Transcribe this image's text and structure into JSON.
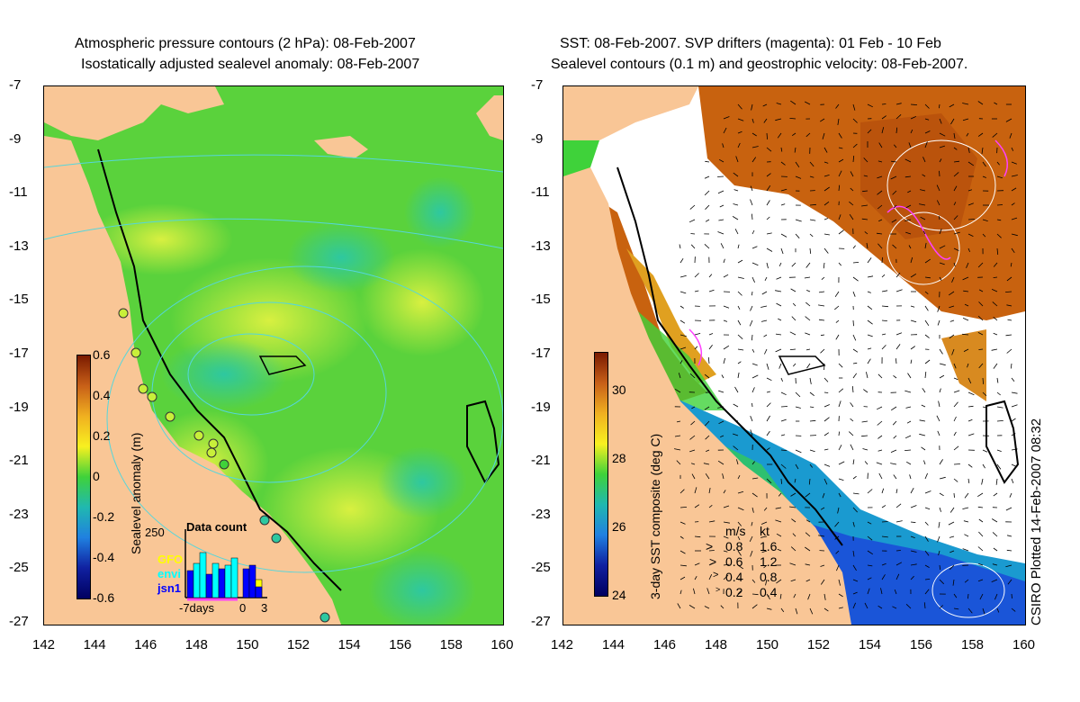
{
  "left_panel": {
    "title_line1": "Atmospheric pressure contours (2 hPa): 08-Feb-2007",
    "title_line2": "Isostatically adjusted sealevel anomaly: 08-Feb-2007",
    "colorbar": {
      "label": "Sealevel anomaly (m)",
      "ticks": [
        "0.6",
        "0.4",
        "0.2",
        "0",
        "-0.2",
        "-0.4",
        "-0.6"
      ]
    },
    "data_count": {
      "title": "Data count",
      "ymax_label": "250",
      "satellites": [
        "GFO",
        "envi",
        "jsn1"
      ],
      "satellite_colors": [
        "#ffff00",
        "#00ffff",
        "#0000ff"
      ],
      "x_label_left": "-7days",
      "x_label_zero": "0",
      "x_label_right": "3"
    }
  },
  "right_panel": {
    "title_line1": "SST: 08-Feb-2007. SVP drifters (magenta): 01 Feb - 10 Feb",
    "title_line2": "Sealevel contours (0.1 m) and geostrophic velocity: 08-Feb-2007.",
    "colorbar": {
      "label": "3-day SST composite (deg C)",
      "ticks": [
        "30",
        "28",
        "26",
        "24"
      ]
    },
    "velocity_legend": {
      "header_ms": "m/s",
      "header_kt": "kt",
      "rows": [
        {
          "ms": "0.8",
          "kt": "1.6"
        },
        {
          "ms": "0.6",
          "kt": "1.2"
        },
        {
          "ms": "0.4",
          "kt": "0.8"
        },
        {
          "ms": "0.2",
          "kt": "0.4"
        }
      ]
    }
  },
  "side_text": "CSIRO Plotted 14-Feb-2007 08:32",
  "axes": {
    "lon_ticks": [
      "142",
      "144",
      "146",
      "148",
      "150",
      "152",
      "154",
      "156",
      "158",
      "160"
    ],
    "lat_ticks": [
      "-7",
      "-9",
      "-11",
      "-13",
      "-15",
      "-17",
      "-19",
      "-21",
      "-23",
      "-25",
      "-27"
    ]
  },
  "colors": {
    "land": "#f9c696",
    "sla_green": "#3fd23a",
    "sla_yellow": "#c8ef3a",
    "sst_warm": "#c8620f",
    "sst_cool": "#1a55d8",
    "contour": "#55d6dc"
  }
}
